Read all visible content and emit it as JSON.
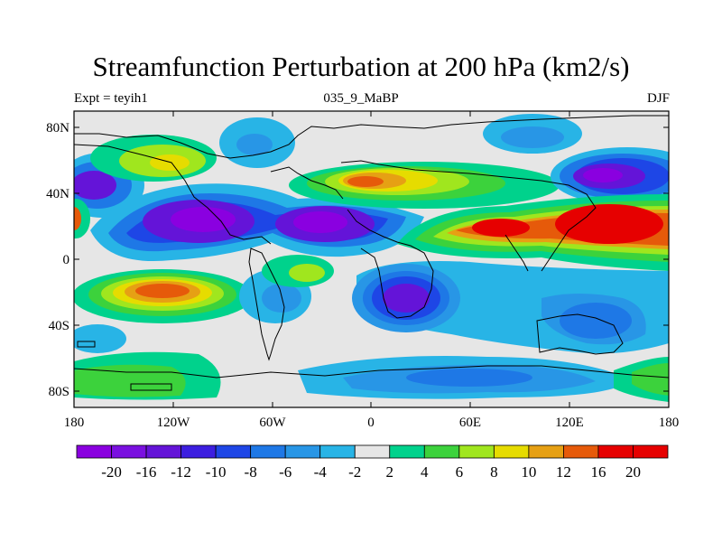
{
  "title": "Streamfunction Perturbation at 200 hPa (km2/s)",
  "subtitle_left": "Expt = teyih1",
  "subtitle_center": "035_9_MaBP",
  "subtitle_right": "DJF",
  "lat_labels": [
    "80N",
    "40N",
    "0",
    "40S",
    "80S"
  ],
  "lon_labels": [
    "180",
    "120W",
    "60W",
    "0",
    "60E",
    "120E",
    "180"
  ],
  "colorbar": {
    "labels": [
      "-20",
      "-16",
      "-12",
      "-10",
      "-8",
      "-6",
      "-4",
      "-2",
      "2",
      "4",
      "6",
      "8",
      "10",
      "12",
      "16",
      "20"
    ],
    "colors": [
      "#8a00e0",
      "#7a10e0",
      "#6414d8",
      "#3c1ee0",
      "#1e46e6",
      "#1e78e6",
      "#2896e6",
      "#28b4e6",
      "#e6e6e6",
      "#00d28c",
      "#3cd23c",
      "#a0e61e",
      "#e6dc00",
      "#e6a014",
      "#e65a0a",
      "#e60000",
      "#e60000"
    ]
  }
}
